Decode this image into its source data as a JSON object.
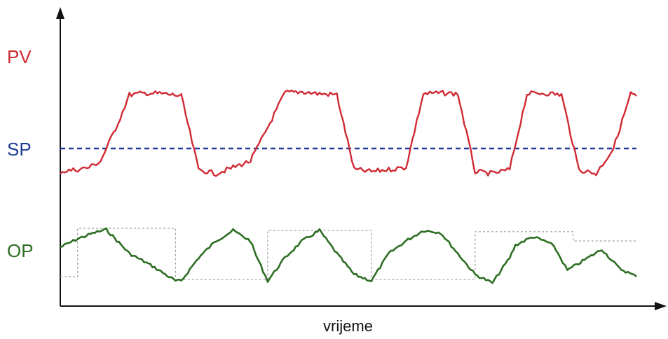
{
  "chart_data": {
    "type": "line",
    "xlabel": "vrijeme",
    "ylabel": "",
    "grid": false,
    "legend": "none",
    "series": [
      {
        "name": "PV",
        "color": "#d02a34",
        "x": [
          0,
          3,
          5,
          7,
          10,
          12,
          15,
          18,
          21,
          24,
          27,
          30,
          33,
          36,
          39,
          42,
          45,
          48,
          51,
          54,
          57,
          60,
          63,
          66,
          69,
          72,
          75,
          78,
          81,
          84,
          87,
          90,
          93,
          96,
          99,
          100
        ],
        "y": [
          -0.55,
          -0.5,
          -0.45,
          -0.3,
          0.6,
          1.28,
          1.32,
          1.3,
          1.25,
          -0.5,
          -0.6,
          -0.45,
          -0.3,
          0.5,
          1.33,
          1.35,
          1.3,
          1.28,
          -0.5,
          -0.55,
          -0.5,
          -0.45,
          1.3,
          1.32,
          1.3,
          -0.55,
          -0.6,
          -0.5,
          1.3,
          1.32,
          1.28,
          -0.5,
          -0.6,
          0.0,
          1.3,
          1.25
        ]
      },
      {
        "name": "SP",
        "color": "#1e3c96",
        "x": [
          0,
          100
        ],
        "y": [
          0,
          0
        ]
      },
      {
        "name": "OP",
        "color": "#2d6e23",
        "x": [
          0,
          3,
          6,
          8,
          12,
          16,
          20,
          21,
          24,
          27,
          30,
          33,
          34,
          36,
          39,
          42,
          45,
          48,
          51,
          54,
          57,
          60,
          63,
          66,
          69,
          72,
          75,
          78,
          79,
          82,
          85,
          86,
          88,
          91,
          94,
          97,
          100
        ],
        "y": [
          -2.35,
          -2.15,
          -2.0,
          -1.93,
          -2.5,
          -2.8,
          -3.15,
          -3.15,
          -2.6,
          -2.2,
          -1.95,
          -2.2,
          -2.55,
          -3.15,
          -2.6,
          -2.2,
          -1.95,
          -2.5,
          -3.0,
          -3.15,
          -2.5,
          -2.2,
          -1.95,
          -2.0,
          -2.5,
          -3.0,
          -3.2,
          -2.6,
          -2.3,
          -2.1,
          -2.25,
          -2.4,
          -2.9,
          -2.65,
          -2.4,
          -2.85,
          -3.05
        ]
      },
      {
        "name": "",
        "color": "#a0a0a0",
        "x": [
          0,
          3,
          3,
          20,
          20,
          36,
          36,
          54,
          54,
          72,
          72,
          89,
          89,
          100
        ],
        "y": [
          -3.05,
          -3.05,
          -1.9,
          -1.9,
          -3.12,
          -3.12,
          -1.95,
          -1.95,
          -3.12,
          -3.12,
          -1.98,
          -1.98,
          -2.2,
          -2.2
        ]
      }
    ]
  },
  "labels": {
    "pv": "PV",
    "sp": "SP",
    "op": "OP"
  },
  "colors": {
    "pv": "#d02a34",
    "sp": "#1e3c96",
    "op": "#2d6e23",
    "axis": "#111111",
    "step": "#a0a0a0"
  }
}
